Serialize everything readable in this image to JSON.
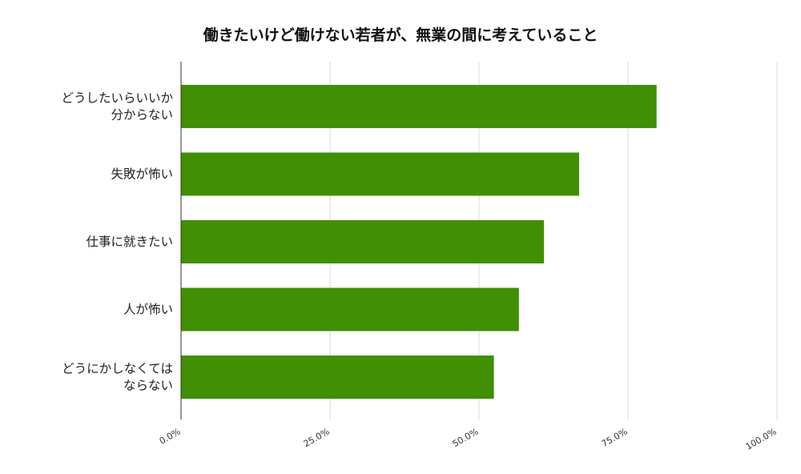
{
  "chart_data": {
    "type": "bar",
    "orientation": "horizontal",
    "title": "働きたいけど働けない若者が、無業の間に考えていること",
    "categories": [
      [
        "どうしたいらいいか",
        "分からない"
      ],
      [
        "失敗が怖い"
      ],
      [
        "仕事に就きたい"
      ],
      [
        "人が怖い"
      ],
      [
        "どうにかしなくては",
        "ならない"
      ]
    ],
    "values": [
      79.8,
      66.8,
      60.9,
      56.7,
      52.5
    ],
    "xlim": [
      0,
      100
    ],
    "ticks": [
      0,
      25,
      50,
      75,
      100
    ],
    "tick_labels": [
      "0.0%",
      "25.0%",
      "50.0%",
      "75.0%",
      "100.0%"
    ],
    "bar_color": "#418f04",
    "grid": true,
    "legend": "none"
  }
}
